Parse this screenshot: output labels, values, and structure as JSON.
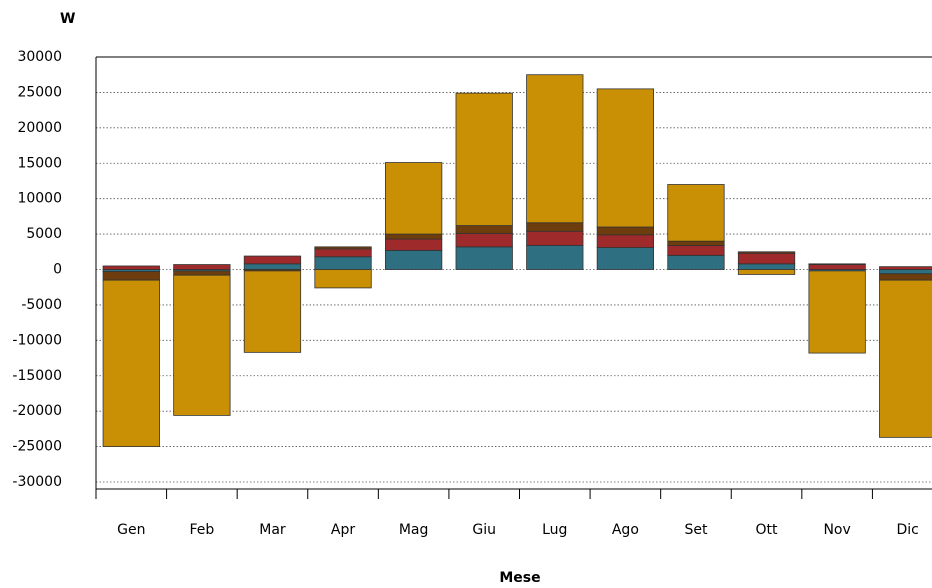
{
  "chart_data": {
    "type": "stacked_bar",
    "title": "W",
    "x_label": "Mese",
    "categories": [
      "Gen",
      "Feb",
      "Mar",
      "Apr",
      "Mag",
      "Giu",
      "Lug",
      "Ago",
      "Set",
      "Ott",
      "Nov",
      "Dic"
    ],
    "series": [
      {
        "color": "#2e6f82",
        "values": [
          -300,
          -200,
          800,
          1800,
          2700,
          3200,
          3400,
          3100,
          2000,
          800,
          -200,
          -600
        ]
      },
      {
        "color": "#9e2a2b",
        "values": [
          500,
          700,
          1100,
          1100,
          1600,
          1900,
          2000,
          1800,
          1400,
          1500,
          700,
          400
        ]
      },
      {
        "color": "#6e3d0e",
        "values": [
          -1200,
          -600,
          -200,
          300,
          700,
          1100,
          1200,
          1100,
          600,
          200,
          100,
          -900
        ]
      },
      {
        "color": "#c98f05",
        "values": [
          -23500,
          -19800,
          -11500,
          -2600,
          10100,
          18700,
          20900,
          19500,
          8000,
          -700,
          -11600,
          -22200
        ]
      }
    ],
    "ylim": [
      -30000,
      30000
    ],
    "yticks": [
      -30000,
      -25000,
      -20000,
      -15000,
      -10000,
      -5000,
      0,
      5000,
      10000,
      15000,
      20000,
      25000,
      30000
    ],
    "grid": true
  }
}
